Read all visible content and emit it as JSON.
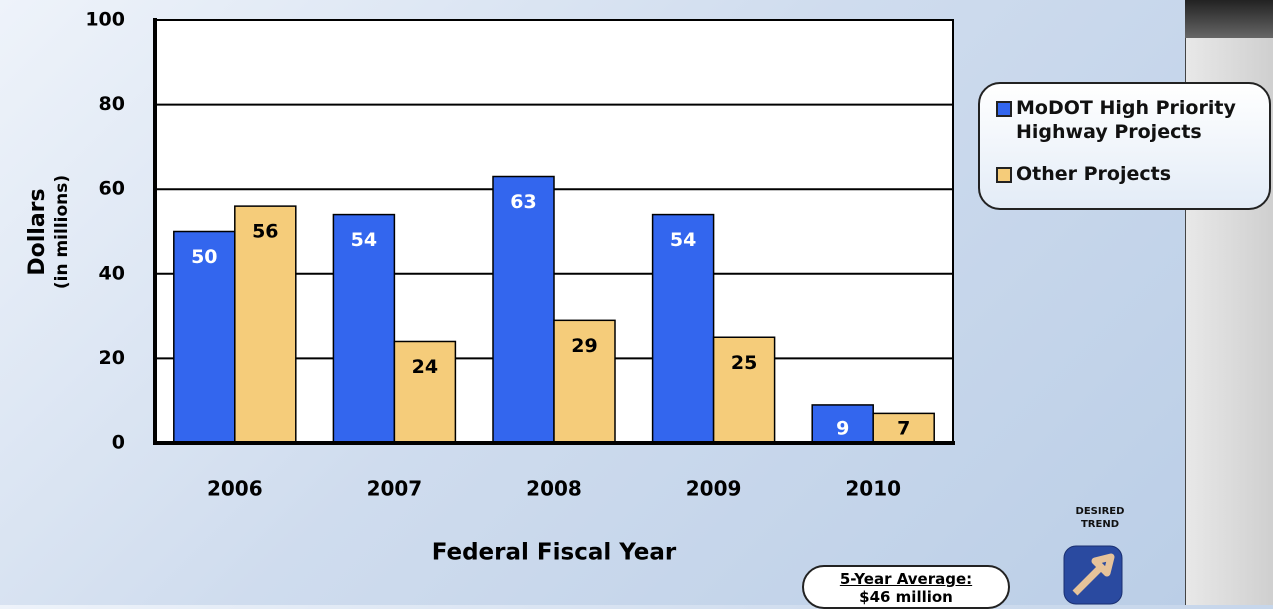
{
  "chart_data": {
    "type": "bar",
    "categories": [
      "2006",
      "2007",
      "2008",
      "2009",
      "2010"
    ],
    "series": [
      {
        "name": "MoDOT High Priority Highway Projects",
        "color": "#3366ee",
        "values": [
          50,
          54,
          63,
          54,
          9
        ]
      },
      {
        "name": "Other Projects",
        "color": "#f5cc7a",
        "values": [
          56,
          24,
          29,
          25,
          7
        ]
      }
    ],
    "ylim": [
      0,
      100
    ],
    "yticks": [
      0,
      20,
      40,
      60,
      80,
      100
    ],
    "grid": true,
    "legend_position": "right",
    "y_label": "Dollars",
    "y_sublabel": "(in millions)",
    "x_label": "Federal Fiscal Year",
    "annotations": {
      "average_title": "5-Year Average:",
      "average_value": "$46 million",
      "trend_label": "DESIRED TREND"
    }
  }
}
